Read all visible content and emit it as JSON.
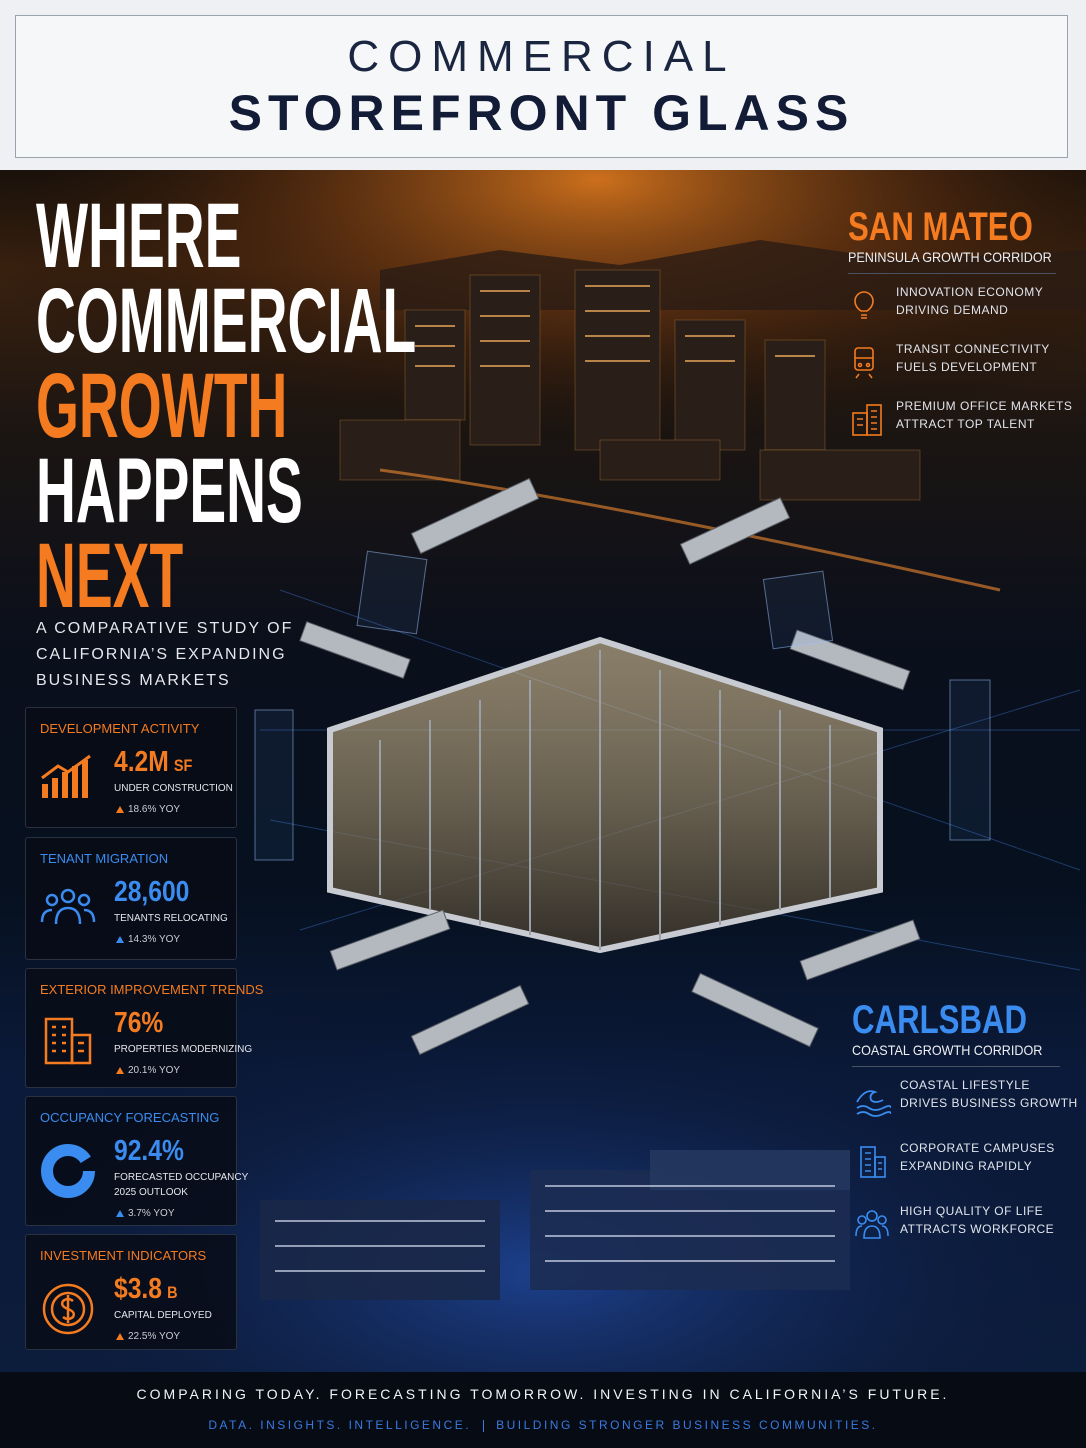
{
  "header": {
    "title_line1": "COMMERCIAL",
    "title_line2": "STOREFRONT GLASS"
  },
  "hero": {
    "headline": [
      {
        "text": "WHERE",
        "color": "#ffffff"
      },
      {
        "text": "COMMERCIAL",
        "color": "#ffffff"
      },
      {
        "text": "GROWTH",
        "color": "#f47b20"
      },
      {
        "text": "HAPPENS",
        "color": "#ffffff"
      },
      {
        "text": "NEXT",
        "color": "#f47b20"
      }
    ],
    "subtitle": [
      "A COMPARATIVE STUDY OF",
      "CALIFORNIA’S EXPANDING",
      "BUSINESS MARKETS"
    ]
  },
  "stats": [
    {
      "title": "DEVELOPMENT ACTIVITY",
      "value": "4.2M",
      "unit": "SF",
      "description": [
        "UNDER CONSTRUCTION"
      ],
      "change": "18.6% YOY",
      "color": "#f47b20"
    },
    {
      "title": "TENANT MIGRATION",
      "value": "28,600",
      "description": [
        "TENANTS RELOCATING"
      ],
      "change": "14.3% YOY",
      "color": "#3a8cf0"
    },
    {
      "title": "EXTERIOR IMPROVEMENT TRENDS",
      "value": "76%",
      "description": [
        "PROPERTIES MODERNIZING"
      ],
      "change": "20.1% YOY",
      "color": "#f47b20"
    },
    {
      "title": "OCCUPANCY FORECASTING",
      "value": "92.4%",
      "description": [
        "FORECASTED OCCUPANCY",
        "2025 OUTLOOK"
      ],
      "change": "3.7% YOY",
      "color": "#3a8cf0"
    },
    {
      "title": "INVESTMENT INDICATORS",
      "value": "$3.8",
      "unit": "B",
      "description": [
        "CAPITAL DEPLOYED"
      ],
      "change": "22.5% YOY",
      "color": "#f47b20"
    }
  ],
  "regions": [
    {
      "name": "SAN MATEO",
      "subtitle": "PENINSULA GROWTH CORRIDOR",
      "color": "#f47b20",
      "points": [
        [
          "INNOVATION ECONOMY",
          "DRIVING DEMAND"
        ],
        [
          "TRANSIT CONNECTIVITY",
          "FUELS DEVELOPMENT"
        ],
        [
          "PREMIUM OFFICE MARKETS",
          "ATTRACT TOP TALENT"
        ]
      ]
    },
    {
      "name": "CARLSBAD",
      "subtitle": "COASTAL GROWTH CORRIDOR",
      "color": "#3a8cf0",
      "points": [
        [
          "COASTAL LIFESTYLE",
          "DRIVES BUSINESS GROWTH"
        ],
        [
          "CORPORATE CAMPUSES",
          "EXPANDING RAPIDLY"
        ],
        [
          "HIGH QUALITY OF LIFE",
          "ATTRACTS WORKFORCE"
        ]
      ]
    }
  ],
  "footer": {
    "line1": "COMPARING TODAY. FORECASTING TOMORROW. INVESTING IN CALIFORNIA’S FUTURE.",
    "line2": [
      "DATA. INSIGHTS. INTELLIGENCE.",
      "BUILDING STRONGER BUSINESS COMMUNITIES."
    ]
  }
}
